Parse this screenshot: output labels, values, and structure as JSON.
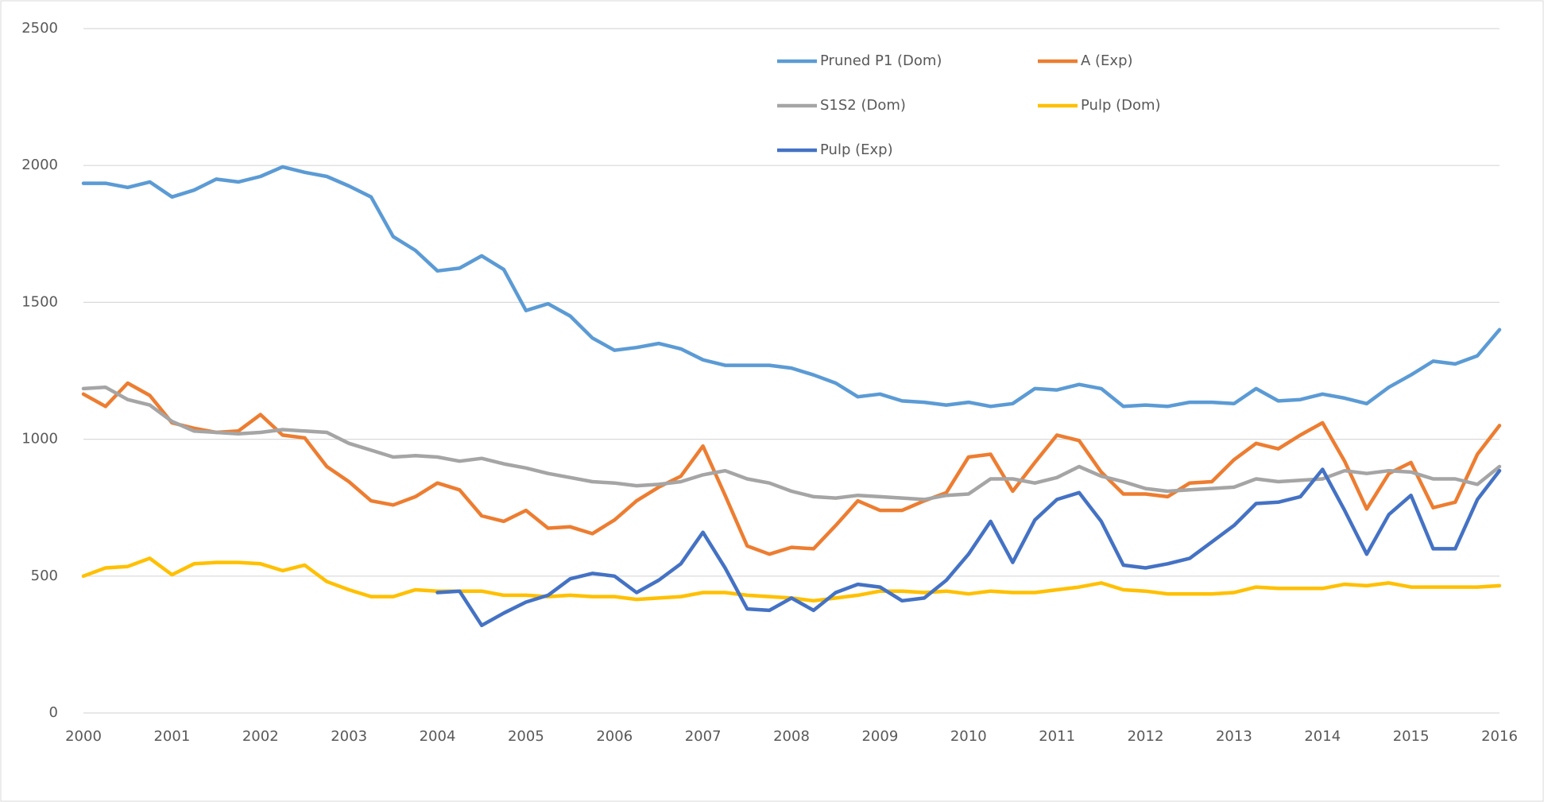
{
  "chart_data": {
    "type": "line",
    "categories": [
      "2000",
      null,
      null,
      null,
      "2001",
      null,
      null,
      null,
      "2002",
      null,
      null,
      null,
      "2003",
      null,
      null,
      null,
      "2004",
      null,
      null,
      null,
      "2005",
      null,
      null,
      null,
      "2006",
      null,
      null,
      null,
      "2007",
      null,
      null,
      null,
      "2008",
      null,
      null,
      null,
      "2009",
      null,
      null,
      null,
      "2010",
      null,
      null,
      null,
      "2011",
      null,
      null,
      null,
      "2012",
      null,
      null,
      null,
      "2013",
      null,
      null,
      null,
      "2014",
      null,
      null,
      null,
      "2015",
      null,
      null,
      null,
      "2016"
    ],
    "series": [
      {
        "name": "Pruned P1 (Dom)",
        "color": "#5b9bd5",
        "values": [
          1935,
          1935,
          1920,
          1940,
          1885,
          1910,
          1950,
          1940,
          1960,
          1995,
          1975,
          1960,
          1925,
          1885,
          1740,
          1690,
          1615,
          1625,
          1670,
          1620,
          1470,
          1495,
          1450,
          1370,
          1325,
          1335,
          1350,
          1330,
          1290,
          1270,
          1270,
          1270,
          1260,
          1235,
          1205,
          1155,
          1165,
          1140,
          1135,
          1125,
          1135,
          1120,
          1130,
          1185,
          1180,
          1200,
          1185,
          1120,
          1125,
          1120,
          1135,
          1135,
          1130,
          1185,
          1140,
          1145,
          1165,
          1150,
          1130,
          1190,
          1235,
          1285,
          1275,
          1305,
          1400
        ]
      },
      {
        "name": "A (Exp)",
        "color": "#ed7d31",
        "values": [
          1165,
          1120,
          1205,
          1160,
          1060,
          1040,
          1025,
          1030,
          1090,
          1015,
          1005,
          900,
          845,
          775,
          760,
          790,
          840,
          815,
          720,
          700,
          740,
          675,
          680,
          655,
          705,
          775,
          825,
          865,
          975,
          795,
          610,
          580,
          605,
          600,
          685,
          775,
          740,
          740,
          775,
          805,
          935,
          945,
          810,
          915,
          1015,
          995,
          880,
          800,
          800,
          790,
          840,
          845,
          925,
          985,
          965,
          1015,
          1060,
          920,
          745,
          875,
          915,
          750,
          770,
          945,
          1050
        ]
      },
      {
        "name": "S1S2 (Dom)",
        "color": "#a5a5a5",
        "values": [
          1185,
          1190,
          1145,
          1125,
          1065,
          1030,
          1025,
          1020,
          1025,
          1035,
          1030,
          1025,
          985,
          960,
          935,
          940,
          935,
          920,
          930,
          910,
          895,
          875,
          860,
          845,
          840,
          830,
          835,
          845,
          870,
          885,
          855,
          840,
          810,
          790,
          785,
          795,
          790,
          785,
          780,
          795,
          800,
          855,
          855,
          840,
          860,
          900,
          865,
          845,
          820,
          810,
          815,
          820,
          825,
          855,
          845,
          850,
          855,
          885,
          875,
          885,
          880,
          855,
          855,
          835,
          900
        ]
      },
      {
        "name": "Pulp (Dom)",
        "color": "#ffc000",
        "values": [
          500,
          530,
          535,
          565,
          505,
          545,
          550,
          550,
          545,
          520,
          540,
          480,
          450,
          425,
          425,
          450,
          445,
          445,
          445,
          430,
          430,
          425,
          430,
          425,
          425,
          415,
          420,
          425,
          440,
          440,
          430,
          425,
          420,
          410,
          420,
          430,
          445,
          445,
          440,
          445,
          435,
          445,
          440,
          440,
          450,
          460,
          475,
          450,
          445,
          435,
          435,
          435,
          440,
          460,
          455,
          455,
          455,
          470,
          465,
          475,
          460,
          460,
          460,
          460,
          465
        ]
      },
      {
        "name": "Pulp (Exp)",
        "color": "#4472c4",
        "values": [
          null,
          null,
          null,
          null,
          null,
          null,
          null,
          null,
          null,
          null,
          null,
          null,
          null,
          null,
          null,
          null,
          440,
          445,
          320,
          365,
          405,
          430,
          490,
          510,
          500,
          440,
          485,
          545,
          660,
          530,
          380,
          375,
          420,
          375,
          440,
          470,
          460,
          410,
          420,
          485,
          580,
          700,
          550,
          705,
          780,
          805,
          700,
          540,
          530,
          545,
          565,
          625,
          685,
          765,
          770,
          790,
          890,
          740,
          580,
          725,
          795,
          600,
          600,
          780,
          885
        ]
      }
    ],
    "ylim": [
      0,
      2500
    ],
    "yticks": [
      0,
      500,
      1000,
      1500,
      2000,
      2500
    ],
    "grid": true
  }
}
